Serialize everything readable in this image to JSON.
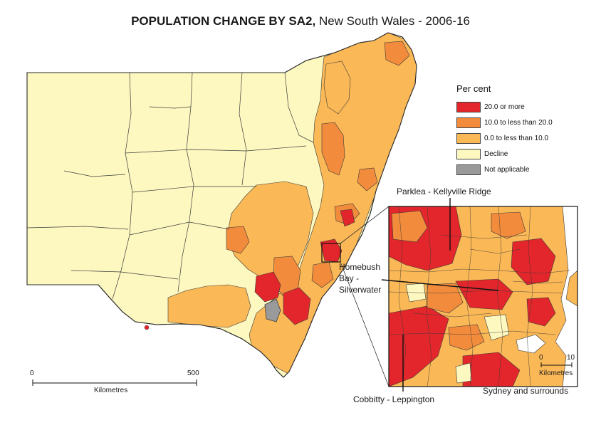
{
  "title": {
    "bold": "POPULATION CHANGE BY SA2,",
    "rest": " New South Wales - 2006-16"
  },
  "colors": {
    "red": "#e3262b",
    "dark_orange": "#f28c3c",
    "orange": "#fbb856",
    "pale": "#fdf8c0",
    "grey": "#9a9a9a",
    "boundary": "#3a3a3a"
  },
  "legend": {
    "title": "Per cent",
    "items": [
      {
        "label": "20.0 or more",
        "color": "#e3262b"
      },
      {
        "label": "10.0 to less than 20.0",
        "color": "#f28c3c"
      },
      {
        "label": "0.0 to less than 10.0",
        "color": "#fbb856"
      },
      {
        "label": "Decline",
        "color": "#fdf8c0"
      },
      {
        "label": "Not applicable",
        "color": "#9a9a9a"
      }
    ]
  },
  "callouts": {
    "parklea": "Parklea - Kellyville Ridge",
    "homebush_1": "Homebush",
    "homebush_2": "Bay -",
    "homebush_3": "Silverwater",
    "cobbitty": "Cobbitty - Leppington"
  },
  "main_scale": {
    "start": "0",
    "end": "500",
    "unit": "Kilometres"
  },
  "inset_scale": {
    "start": "0",
    "end": "10",
    "unit": "Kilometres"
  },
  "inset_caption": "Sydney and surrounds"
}
